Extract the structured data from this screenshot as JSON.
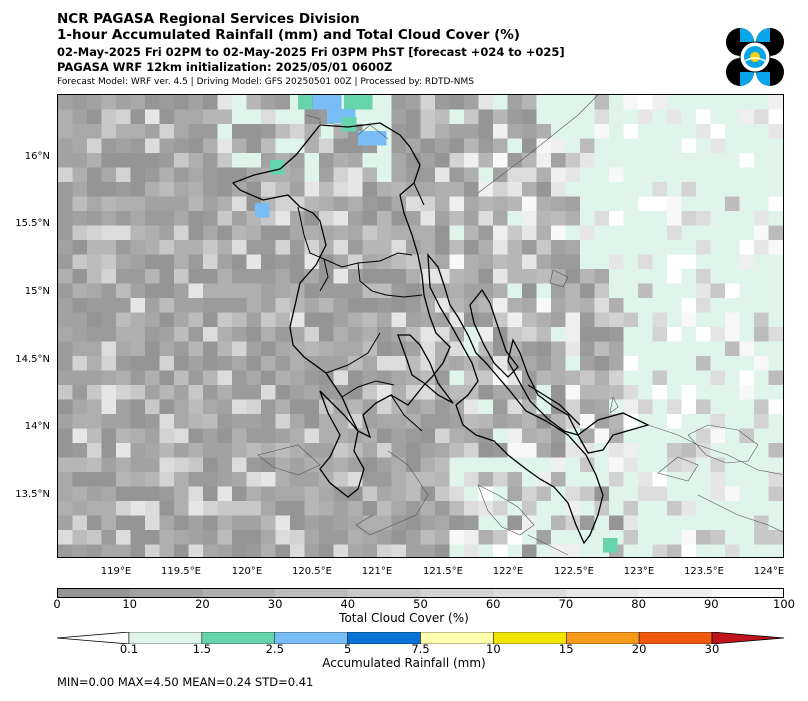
{
  "header": {
    "line1": "NCR PAGASA Regional Services Division",
    "line2": "1-hour Accumulated Rainfall (mm) and Total Cloud Cover (%)",
    "line3": "02-May-2025 Fri 02PM to 02-May-2025 Fri 03PM PhST [forecast +024 to +025]",
    "line4": "PAGASA WRF 12km initialization: 2025/05/01 0600Z",
    "line5": "Forecast Model: WRF ver. 4.5 | Driving Model: GFS 20250501 00Z | Processed by: RDTD-NMS"
  },
  "logo_icon": "pagasa-seal-icon",
  "map": {
    "lat_labels": [
      "16°N",
      "15.5°N",
      "15°N",
      "14.5°N",
      "14°N",
      "13.5°N"
    ],
    "lon_labels": [
      "119°E",
      "119.5°E",
      "120°E",
      "120.5°E",
      "121°E",
      "121.5°E",
      "122°E",
      "122.5°E",
      "123°E",
      "123.5°E",
      "124°E"
    ],
    "lat_values": [
      16,
      15.5,
      15,
      14.5,
      14,
      13.5
    ],
    "lon_values": [
      119,
      119.5,
      120,
      120.5,
      121,
      121.5,
      122,
      122.5,
      123,
      123.5,
      124
    ],
    "extent": {
      "lon_min": 118.55,
      "lon_max": 124.1,
      "lat_min": 13.02,
      "lat_max": 16.45
    }
  },
  "cloud_cover": {
    "title": "Total Cloud Cover (%)",
    "ticks": [
      "0",
      "10",
      "20",
      "30",
      "40",
      "50",
      "60",
      "70",
      "80",
      "90",
      "100"
    ],
    "colors": [
      "#959595",
      "#a2a2a2",
      "#afafaf",
      "#bcbcbc",
      "#c8c8c8",
      "#d3d3d3",
      "#dcdcdc",
      "#e6e6e6",
      "#efefef",
      "#f8f8f8"
    ]
  },
  "rainfall": {
    "title": "Accumulated Rainfall (mm)",
    "ticks": [
      "0.1",
      "1.5",
      "2.5",
      "5",
      "7.5",
      "10",
      "15",
      "20",
      "30"
    ],
    "colors": [
      "#ffffff",
      "#dff5ec",
      "#66d4ad",
      "#78bdf5",
      "#0a74d6",
      "#ffffb0",
      "#f2e400",
      "#f59a1b",
      "#ef5a0c",
      "#c0141d"
    ]
  },
  "stats": "MIN=0.00   MAX=4.50   MEAN=0.24   STD=0.41"
}
